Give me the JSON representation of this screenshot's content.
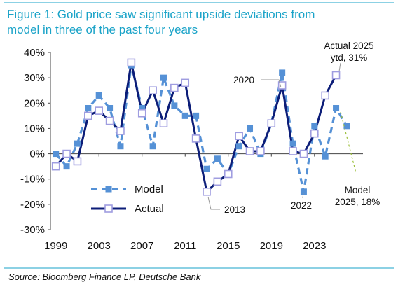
{
  "chart_data": {
    "type": "line",
    "title": "Figure 1: Gold price saw significant upside deviations from model in three of the past four years",
    "source": "Source: Bloomberg Finance LP, Deutsche Bank",
    "x": [
      1999,
      2000,
      2001,
      2002,
      2003,
      2004,
      2005,
      2006,
      2007,
      2008,
      2009,
      2010,
      2011,
      2012,
      2013,
      2014,
      2015,
      2016,
      2017,
      2018,
      2019,
      2020,
      2021,
      2022,
      2023,
      2024,
      2025,
      2026
    ],
    "series": [
      {
        "name": "Model",
        "color": "#5591d6",
        "values": [
          0,
          -5,
          4,
          18,
          23,
          18,
          3,
          35,
          18,
          3,
          30,
          19,
          15,
          15,
          -6,
          -2,
          -8,
          3,
          10,
          0,
          12,
          32,
          4,
          -15,
          11,
          -1,
          18,
          11
        ]
      },
      {
        "name": "Actual",
        "color": "#0c1d78",
        "values": [
          -5,
          0,
          -3,
          15,
          17,
          13,
          9,
          36,
          16,
          25,
          12,
          26,
          28,
          6,
          -15,
          -11,
          -8,
          7,
          1,
          1,
          12,
          27,
          1,
          0,
          8,
          23,
          31,
          null
        ]
      }
    ],
    "xlim": [
      1998.5,
      2027.5
    ],
    "xticks": [
      1999,
      2003,
      2007,
      2011,
      2015,
      2019,
      2023
    ],
    "ylim": [
      -30,
      40
    ],
    "yticks": [
      {
        "value": -30,
        "label": "-30%"
      },
      {
        "value": -20,
        "label": "-20%"
      },
      {
        "value": -10,
        "label": "-10%"
      },
      {
        "value": 0,
        "label": "0%"
      },
      {
        "value": 10,
        "label": "10%"
      },
      {
        "value": 20,
        "label": "20%"
      },
      {
        "value": 30,
        "label": "30%"
      },
      {
        "value": 40,
        "label": "40%"
      }
    ],
    "annotations": [
      {
        "text": [
          "Actual 2025",
          "ytd, 31%"
        ]
      },
      {
        "text": [
          "2020"
        ]
      },
      {
        "text": [
          "2013"
        ]
      },
      {
        "text": [
          "2022"
        ]
      },
      {
        "text": [
          "Model",
          "2025, 18%"
        ]
      }
    ]
  }
}
